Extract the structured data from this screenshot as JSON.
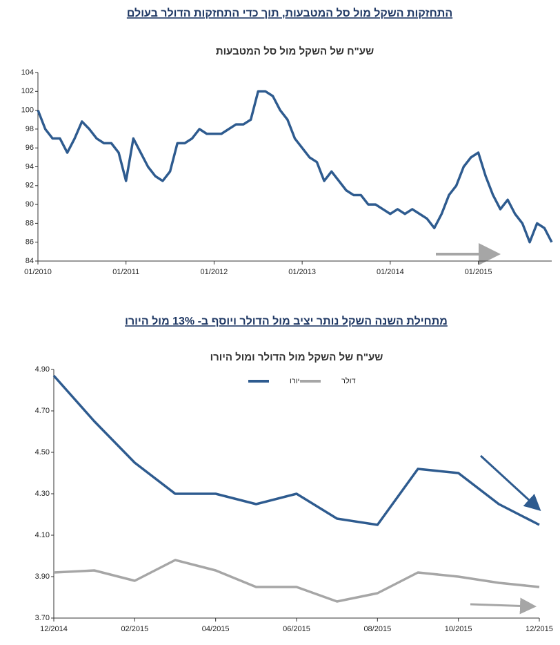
{
  "headings": [
    "התחזקות השקל  מול סל המטבעות, תוך כדי התחזקות הדולר בעולם",
    "מתחילת השנה השקל נותר יציב מול הדולר ויוסף ב- 13% מול היורו"
  ],
  "chart_data": [
    {
      "type": "line",
      "title": "שע\"ח של השקל מול סל המטבעות",
      "color": "#2e5b8f",
      "x": [
        "2010-01",
        "2010-02",
        "2010-03",
        "2010-04",
        "2010-05",
        "2010-06",
        "2010-07",
        "2010-08",
        "2010-09",
        "2010-10",
        "2010-11",
        "2010-12",
        "2011-01",
        "2011-02",
        "2011-03",
        "2011-04",
        "2011-05",
        "2011-06",
        "2011-07",
        "2011-08",
        "2011-09",
        "2011-10",
        "2011-11",
        "2011-12",
        "2012-01",
        "2012-02",
        "2012-03",
        "2012-04",
        "2012-05",
        "2012-06",
        "2012-07",
        "2012-08",
        "2012-09",
        "2012-10",
        "2012-11",
        "2012-12",
        "2013-01",
        "2013-02",
        "2013-03",
        "2013-04",
        "2013-05",
        "2013-06",
        "2013-07",
        "2013-08",
        "2013-09",
        "2013-10",
        "2013-11",
        "2013-12",
        "2014-01",
        "2014-02",
        "2014-03",
        "2014-04",
        "2014-05",
        "2014-06",
        "2014-07",
        "2014-08",
        "2014-09",
        "2014-10",
        "2014-11",
        "2014-12",
        "2015-01",
        "2015-02",
        "2015-03",
        "2015-04",
        "2015-05",
        "2015-06",
        "2015-07",
        "2015-08",
        "2015-09",
        "2015-10",
        "2015-11"
      ],
      "values": [
        100,
        98,
        97,
        97,
        95.5,
        97,
        98.8,
        98,
        97,
        96.5,
        96.5,
        95.5,
        92.5,
        97,
        95.5,
        94,
        93,
        92.5,
        93.5,
        96.5,
        96.5,
        97,
        98,
        97.5,
        97.5,
        97.5,
        98,
        98.5,
        98.5,
        99,
        102,
        102,
        101.5,
        100,
        99,
        97,
        96,
        95,
        94.5,
        92.5,
        93.5,
        92.5,
        91.5,
        91,
        91,
        90,
        90,
        89.5,
        89,
        89.5,
        89,
        89.5,
        89,
        88.5,
        87.5,
        89,
        91,
        92,
        94,
        95,
        95.5,
        93,
        91,
        89.5,
        90.5,
        89,
        88,
        86,
        88,
        87.5,
        86
      ],
      "xticks": [
        {
          "value": "2010-01",
          "label": "01/2010"
        },
        {
          "value": "2011-01",
          "label": "01/2011"
        },
        {
          "value": "2012-01",
          "label": "01/2012"
        },
        {
          "value": "2013-01",
          "label": "01/2013"
        },
        {
          "value": "2014-01",
          "label": "01/2014"
        },
        {
          "value": "2015-01",
          "label": "01/2015"
        }
      ],
      "ylim": [
        84,
        104
      ],
      "yticks": [
        84,
        86,
        88,
        90,
        92,
        94,
        96,
        98,
        100,
        102,
        104
      ],
      "grid": false
    },
    {
      "type": "line",
      "title": "שע\"ח של השקל מול הדולר ומול היורו",
      "legend": "top",
      "x": [
        "2014-12",
        "2015-01",
        "2015-02",
        "2015-03",
        "2015-04",
        "2015-05",
        "2015-06",
        "2015-07",
        "2015-08",
        "2015-09",
        "2015-10",
        "2015-11",
        "2015-12"
      ],
      "series": [
        {
          "name": "יורו",
          "color": "#2e5b8f",
          "values": [
            4.87,
            4.65,
            4.45,
            4.3,
            4.3,
            4.25,
            4.3,
            4.18,
            4.15,
            4.42,
            4.4,
            4.25,
            4.15
          ]
        },
        {
          "name": "דולר",
          "color": "#a6a6a6",
          "values": [
            3.92,
            3.93,
            3.88,
            3.98,
            3.93,
            3.85,
            3.85,
            3.78,
            3.82,
            3.92,
            3.9,
            3.87,
            3.85
          ]
        }
      ],
      "xticks": [
        {
          "value": "2014-12",
          "label": "12/2014"
        },
        {
          "value": "2015-02",
          "label": "02/2015"
        },
        {
          "value": "2015-04",
          "label": "04/2015"
        },
        {
          "value": "2015-06",
          "label": "06/2015"
        },
        {
          "value": "2015-08",
          "label": "08/2015"
        },
        {
          "value": "2015-10",
          "label": "10/2015"
        },
        {
          "value": "2015-12",
          "label": "12/2015"
        }
      ],
      "ylim": [
        3.7,
        4.9
      ],
      "yticks": [
        {
          "value": 3.7,
          "label": "3.70"
        },
        {
          "value": 3.9,
          "label": "3.90"
        },
        {
          "value": 4.1,
          "label": "4.10"
        },
        {
          "value": 4.3,
          "label": "4.30"
        },
        {
          "value": 4.5,
          "label": "4.50"
        },
        {
          "value": 4.7,
          "label": "4.70"
        },
        {
          "value": 4.9,
          "label": "4.90"
        }
      ],
      "grid": false
    }
  ]
}
